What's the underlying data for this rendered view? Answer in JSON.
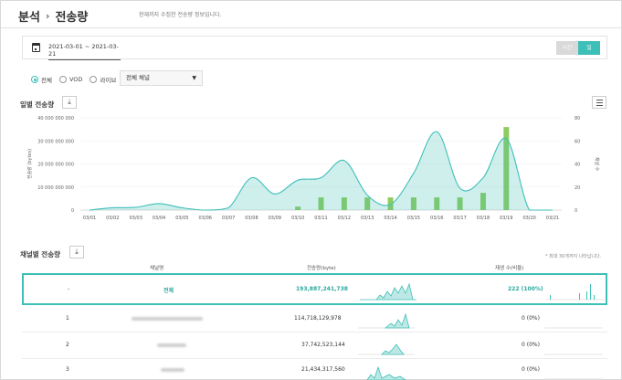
{
  "header": {
    "crumb_parent": "분석",
    "crumb_sep": "›",
    "crumb_current": "전송량",
    "subtitle": "현재까지 수집한 전송량 정보입니다."
  },
  "datebar": {
    "range": "2021-03-01 ~ 2021-03-21",
    "hour_label": "시간",
    "day_label": "일"
  },
  "filters": {
    "radios": [
      "전체",
      "VOD",
      "라이브"
    ],
    "selected_radio": "전체",
    "channel_select": "전체 채널"
  },
  "daily": {
    "title": "일별 전송량",
    "download_icon": "download-icon",
    "menu_icon": "hamburger-icon"
  },
  "chart_data": {
    "type": "area",
    "ylabel": "전송량 (bytes)",
    "y2label": "채널 수",
    "yticks": [
      "40 000 000 000",
      "30 000 000 000",
      "20 000 000 000",
      "10 000 000 000",
      "0"
    ],
    "y2ticks": [
      "80",
      "60",
      "40",
      "20",
      "0"
    ],
    "ylim": [
      0,
      40000000000
    ],
    "y2lim": [
      0,
      80
    ],
    "categories": [
      "03/01",
      "03/02",
      "03/03",
      "03/04",
      "03/05",
      "03/06",
      "03/07",
      "03/08",
      "03/09",
      "03/10",
      "03/11",
      "03/12",
      "03/13",
      "03/14",
      "03/15",
      "03/16",
      "03/17",
      "03/18",
      "03/19",
      "03/20",
      "03/21"
    ],
    "series": [
      {
        "values": [
          0,
          1000000000,
          1200000000,
          2800000000,
          1000000000,
          0,
          1000000000,
          14000000000,
          7000000000,
          13000000000,
          14000000000,
          21500000000,
          6500000000,
          2500000000,
          16000000000,
          34000000000,
          9500000000,
          14000000000,
          31000000000,
          0,
          0
        ]
      },
      {
        "values": [
          0,
          0,
          0,
          0,
          0,
          0,
          0,
          0,
          0,
          3,
          11,
          11,
          11,
          11,
          11,
          11,
          11,
          15,
          72,
          0,
          0
        ]
      }
    ],
    "colors": {
      "area": "#3ebfb8",
      "bars": "#8ccd5e"
    }
  },
  "channel": {
    "title": "채널별 전송량",
    "note": "* 최대 30개까지 나타납니다.",
    "headers": {
      "name": "채널명",
      "bytes": "전송량(byte)",
      "count": "재생 수(비율)"
    },
    "total": {
      "label": "-",
      "name": "전체",
      "bytes": "193,887,241,738",
      "count": "222 (100%)"
    },
    "rows": [
      {
        "idx": "1",
        "bytes": "114,718,129,978",
        "count": "0 (0%)"
      },
      {
        "idx": "2",
        "bytes": "37,742,523,144",
        "count": "0 (0%)"
      },
      {
        "idx": "3",
        "bytes": "21,434,317,560",
        "count": "0 (0%)"
      }
    ],
    "accent": "#3ebfb8"
  }
}
